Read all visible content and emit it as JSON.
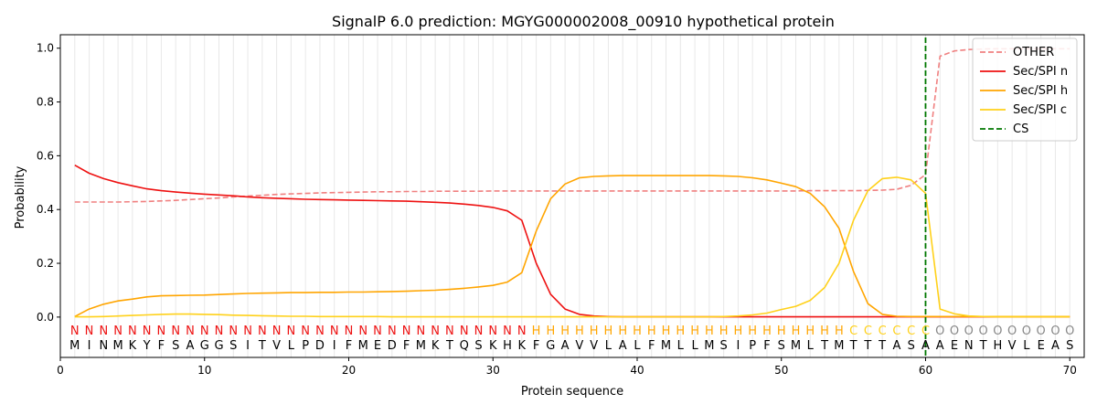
{
  "chart_data": {
    "type": "line",
    "title": "SignalP 6.0 prediction: MGYG000002008_00910 hypothetical protein",
    "xlabel": "Protein sequence",
    "ylabel": "Probability",
    "xlim": [
      0,
      71
    ],
    "ylim": [
      -0.15,
      1.05
    ],
    "x_ticks": [
      0,
      10,
      20,
      30,
      40,
      50,
      60,
      70
    ],
    "x_tick_labels": [
      "0",
      "10",
      "20",
      "30",
      "40",
      "50",
      "60",
      "70"
    ],
    "y_ticks": [
      0.0,
      0.2,
      0.4,
      0.6,
      0.8,
      1.0
    ],
    "y_tick_labels": [
      "0.0",
      "0.2",
      "0.4",
      "0.6",
      "0.8",
      "1.0"
    ],
    "grid": "vertical lines at each residue",
    "legend_position": "top-right",
    "colors": {
      "OTHER": "#f08080",
      "Sec/SPI n": "#ee1111",
      "Sec/SPI h": "#ffa500",
      "Sec/SPI c": "#ffd11a",
      "CS": "#007700",
      "O": "#888888"
    },
    "sequence": [
      "M",
      "I",
      "N",
      "M",
      "K",
      "Y",
      "F",
      "S",
      "A",
      "G",
      "G",
      "S",
      "I",
      "T",
      "V",
      "L",
      "P",
      "D",
      "I",
      "F",
      "M",
      "E",
      "D",
      "F",
      "M",
      "K",
      "T",
      "Q",
      "S",
      "K",
      "H",
      "K",
      "F",
      "G",
      "A",
      "V",
      "V",
      "L",
      "A",
      "L",
      "F",
      "M",
      "L",
      "L",
      "M",
      "S",
      "I",
      "P",
      "F",
      "S",
      "M",
      "L",
      "T",
      "M",
      "T",
      "T",
      "T",
      "A",
      "S",
      "A",
      "A",
      "E",
      "N",
      "T",
      "H",
      "V",
      "L",
      "E",
      "A",
      "S"
    ],
    "labels": [
      "N",
      "N",
      "N",
      "N",
      "N",
      "N",
      "N",
      "N",
      "N",
      "N",
      "N",
      "N",
      "N",
      "N",
      "N",
      "N",
      "N",
      "N",
      "N",
      "N",
      "N",
      "N",
      "N",
      "N",
      "N",
      "N",
      "N",
      "N",
      "N",
      "N",
      "N",
      "N",
      "H",
      "H",
      "H",
      "H",
      "H",
      "H",
      "H",
      "H",
      "H",
      "H",
      "H",
      "H",
      "H",
      "H",
      "H",
      "H",
      "H",
      "H",
      "H",
      "H",
      "H",
      "H",
      "C",
      "C",
      "C",
      "C",
      "C",
      "C",
      "O",
      "O",
      "O",
      "O",
      "O",
      "O",
      "O",
      "O",
      "O",
      "O"
    ],
    "cleavage_site": 60,
    "series": [
      {
        "name": "OTHER",
        "style": "dashed",
        "values": [
          0.428,
          0.428,
          0.428,
          0.428,
          0.429,
          0.43,
          0.432,
          0.434,
          0.437,
          0.44,
          0.443,
          0.447,
          0.45,
          0.453,
          0.456,
          0.458,
          0.46,
          0.462,
          0.463,
          0.464,
          0.465,
          0.466,
          0.466,
          0.467,
          0.467,
          0.468,
          0.468,
          0.468,
          0.468,
          0.469,
          0.469,
          0.469,
          0.469,
          0.469,
          0.469,
          0.469,
          0.469,
          0.469,
          0.469,
          0.469,
          0.469,
          0.469,
          0.469,
          0.469,
          0.469,
          0.469,
          0.469,
          0.469,
          0.469,
          0.469,
          0.469,
          0.47,
          0.47,
          0.47,
          0.47,
          0.471,
          0.472,
          0.475,
          0.49,
          0.53,
          0.97,
          0.99,
          0.995,
          0.997,
          0.998,
          0.998,
          0.998,
          0.998,
          0.998,
          0.998
        ]
      },
      {
        "name": "Sec/SPI n",
        "style": "solid",
        "values": [
          0.565,
          0.535,
          0.515,
          0.5,
          0.488,
          0.477,
          0.47,
          0.465,
          0.461,
          0.457,
          0.454,
          0.451,
          0.447,
          0.444,
          0.442,
          0.44,
          0.438,
          0.437,
          0.436,
          0.435,
          0.434,
          0.433,
          0.432,
          0.431,
          0.429,
          0.427,
          0.424,
          0.42,
          0.415,
          0.408,
          0.395,
          0.36,
          0.2,
          0.085,
          0.03,
          0.01,
          0.004,
          0.002,
          0.001,
          0.001,
          0.001,
          0.001,
          0.001,
          0.001,
          0.001,
          0.001,
          0.001,
          0.001,
          0.001,
          0.001,
          0.001,
          0.001,
          0.001,
          0.001,
          0.001,
          0.001,
          0.001,
          0.001,
          0.001,
          0.001,
          0.001,
          0.001,
          0.001,
          0.001,
          0.001,
          0.001,
          0.001,
          0.001,
          0.001,
          0.001
        ]
      },
      {
        "name": "Sec/SPI h",
        "style": "solid",
        "values": [
          0.002,
          0.03,
          0.048,
          0.06,
          0.067,
          0.075,
          0.079,
          0.08,
          0.081,
          0.082,
          0.084,
          0.086,
          0.088,
          0.089,
          0.09,
          0.091,
          0.091,
          0.092,
          0.092,
          0.093,
          0.093,
          0.094,
          0.095,
          0.096,
          0.098,
          0.1,
          0.103,
          0.107,
          0.112,
          0.118,
          0.13,
          0.165,
          0.32,
          0.44,
          0.495,
          0.518,
          0.523,
          0.525,
          0.526,
          0.526,
          0.526,
          0.526,
          0.526,
          0.526,
          0.526,
          0.525,
          0.523,
          0.518,
          0.51,
          0.498,
          0.485,
          0.46,
          0.41,
          0.33,
          0.17,
          0.05,
          0.01,
          0.003,
          0.002,
          0.002,
          0.002,
          0.002,
          0.002,
          0.002,
          0.002,
          0.002,
          0.002,
          0.002,
          0.002,
          0.002
        ]
      },
      {
        "name": "Sec/SPI c",
        "style": "solid",
        "values": [
          0.001,
          0.001,
          0.002,
          0.004,
          0.006,
          0.008,
          0.01,
          0.011,
          0.011,
          0.01,
          0.009,
          0.007,
          0.006,
          0.005,
          0.004,
          0.003,
          0.003,
          0.002,
          0.002,
          0.002,
          0.002,
          0.002,
          0.001,
          0.001,
          0.001,
          0.001,
          0.001,
          0.001,
          0.001,
          0.001,
          0.001,
          0.001,
          0.001,
          0.001,
          0.001,
          0.001,
          0.001,
          0.001,
          0.001,
          0.001,
          0.001,
          0.001,
          0.001,
          0.001,
          0.001,
          0.002,
          0.004,
          0.008,
          0.015,
          0.028,
          0.04,
          0.062,
          0.11,
          0.2,
          0.36,
          0.47,
          0.515,
          0.52,
          0.51,
          0.46,
          0.03,
          0.012,
          0.004,
          0.002,
          0.001,
          0.001,
          0.001,
          0.001,
          0.001,
          0.001
        ]
      }
    ],
    "legend": [
      {
        "label": "OTHER",
        "style": "dashed",
        "color": "#f08080"
      },
      {
        "label": "Sec/SPI n",
        "style": "solid",
        "color": "#ee1111"
      },
      {
        "label": "Sec/SPI h",
        "style": "solid",
        "color": "#ffa500"
      },
      {
        "label": "Sec/SPI c",
        "style": "solid",
        "color": "#ffd11a"
      },
      {
        "label": "CS",
        "style": "dashed",
        "color": "#007700"
      }
    ]
  }
}
